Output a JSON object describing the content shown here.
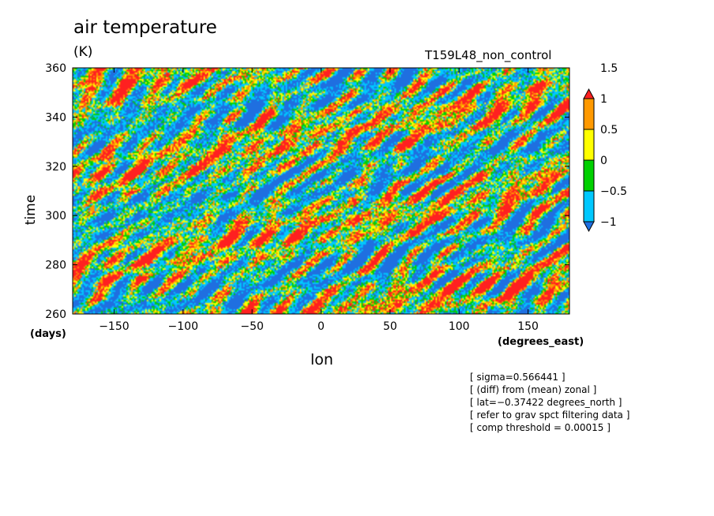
{
  "chart_data": {
    "type": "heatmap",
    "title": "air temperature",
    "units": "(K)",
    "run_name": "T159L48_non_control",
    "xlabel": "lon",
    "ylabel": "time",
    "x_unit": "(degrees_east)",
    "y_unit": "(days)",
    "xlim": [
      -180,
      180
    ],
    "ylim": [
      260,
      360
    ],
    "x_ticks": [
      -150,
      -100,
      -50,
      0,
      50,
      100,
      150
    ],
    "y_ticks": [
      260,
      280,
      300,
      320,
      340,
      360
    ],
    "colorbar": {
      "levels": [
        -1,
        -0.5,
        0,
        0.5,
        1,
        1.5
      ],
      "level_labels": [
        "−1",
        "−0.5",
        "0",
        "0.5",
        "1",
        "1.5"
      ],
      "colors": [
        "#1f6fe0",
        "#00c8ff",
        "#00d000",
        "#ffff00",
        "#ff9900",
        "#ff2020"
      ],
      "colors_note": "blue below -1, cyan -1 to -0.5 .. red above 1.5"
    },
    "annotations": [
      "[ sigma=0.566441 ]",
      "[ (diff) from (mean) zonal ]",
      "[ lat=−0.37422 degrees_north ]",
      "[ refer to grav spct filtering data ]",
      "[ comp threshold = 0.00015 ]"
    ]
  }
}
